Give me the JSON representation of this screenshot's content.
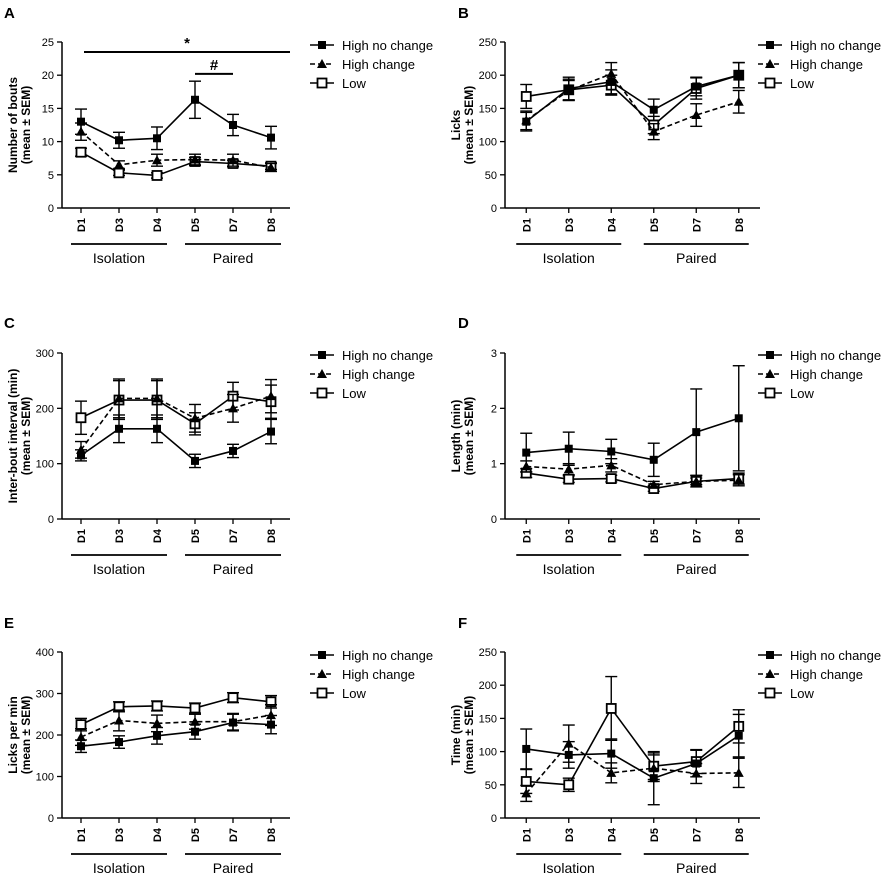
{
  "figure": {
    "x_categories": [
      "D1",
      "D3",
      "D4",
      "D5",
      "D7",
      "D8"
    ],
    "groups": [
      {
        "label": "Isolation",
        "from": 0,
        "to": 2
      },
      {
        "label": "Paired",
        "from": 3,
        "to": 5
      }
    ],
    "legend": [
      "High no change",
      "High change",
      "Low"
    ],
    "ylabel_suffix": "(mean ± SEM)"
  },
  "chart_data": [
    {
      "panel": "A",
      "type": "line",
      "ylabel": "Number of bouts",
      "ylim": [
        0,
        25
      ],
      "yticks": [
        0,
        5,
        10,
        15,
        20,
        25
      ],
      "categories": [
        "D1",
        "D3",
        "D4",
        "D5",
        "D7",
        "D8"
      ],
      "series": [
        {
          "name": "High no change",
          "values": [
            13.0,
            10.2,
            10.5,
            16.3,
            12.5,
            10.6
          ],
          "sem": [
            1.9,
            1.2,
            1.7,
            2.8,
            1.6,
            1.7
          ]
        },
        {
          "name": "High change",
          "values": [
            11.5,
            6.5,
            7.2,
            7.3,
            7.2,
            6.1
          ],
          "sem": [
            1.3,
            0.6,
            0.9,
            0.8,
            0.9,
            0.6
          ]
        },
        {
          "name": "Low",
          "values": [
            8.4,
            5.3,
            4.9,
            7.0,
            6.7,
            6.3
          ],
          "sem": [
            0.6,
            0.4,
            0.4,
            0.6,
            0.5,
            0.5
          ]
        }
      ],
      "annotations": [
        {
          "text": "*",
          "from": 0,
          "to": 5,
          "y": 23.5
        },
        {
          "text": "#",
          "from": 3,
          "to": 4,
          "y": 20.2
        }
      ]
    },
    {
      "panel": "B",
      "type": "line",
      "ylabel": "Licks",
      "ylim": [
        0,
        250
      ],
      "yticks": [
        0,
        50,
        100,
        150,
        200,
        250
      ],
      "categories": [
        "D1",
        "D3",
        "D4",
        "D5",
        "D7",
        "D8"
      ],
      "series": [
        {
          "name": "High no change",
          "values": [
            130,
            180,
            190,
            148,
            183,
            200
          ],
          "sem": [
            14,
            17,
            18,
            16,
            14,
            19
          ]
        },
        {
          "name": "High change",
          "values": [
            132,
            177,
            202,
            115,
            140,
            160
          ],
          "sem": [
            14,
            15,
            17,
            12,
            17,
            17
          ]
        },
        {
          "name": "Low",
          "values": [
            168,
            178,
            185,
            125,
            180,
            200
          ],
          "sem": [
            18,
            16,
            15,
            13,
            16,
            19
          ]
        }
      ]
    },
    {
      "panel": "C",
      "type": "line",
      "ylabel": "Inter-bout interval (min)",
      "ylim": [
        0,
        300
      ],
      "yticks": [
        0,
        100,
        200,
        300
      ],
      "categories": [
        "D1",
        "D3",
        "D4",
        "D5",
        "D7",
        "D8"
      ],
      "series": [
        {
          "name": "High no change",
          "values": [
            115,
            163,
            163,
            105,
            123,
            158
          ],
          "sem": [
            10,
            25,
            25,
            12,
            12,
            22
          ]
        },
        {
          "name": "High change",
          "values": [
            125,
            218,
            218,
            182,
            200,
            222
          ],
          "sem": [
            15,
            35,
            35,
            25,
            25,
            30
          ]
        },
        {
          "name": "Low",
          "values": [
            183,
            215,
            215,
            172,
            222,
            212
          ],
          "sem": [
            30,
            35,
            35,
            20,
            25,
            30
          ]
        }
      ]
    },
    {
      "panel": "D",
      "type": "line",
      "ylabel": "Length (min)",
      "ylim": [
        0,
        3
      ],
      "yticks": [
        0,
        1,
        2,
        3
      ],
      "categories": [
        "D1",
        "D3",
        "D4",
        "D5",
        "D7",
        "D8"
      ],
      "series": [
        {
          "name": "High no change",
          "values": [
            1.2,
            1.27,
            1.22,
            1.07,
            1.57,
            1.82
          ],
          "sem": [
            0.35,
            0.3,
            0.22,
            0.3,
            0.78,
            0.95
          ]
        },
        {
          "name": "High change",
          "values": [
            0.95,
            0.9,
            0.97,
            0.62,
            0.68,
            0.7
          ],
          "sem": [
            0.1,
            0.1,
            0.12,
            0.06,
            0.1,
            0.1
          ]
        },
        {
          "name": "Low",
          "values": [
            0.83,
            0.72,
            0.73,
            0.55,
            0.68,
            0.73
          ],
          "sem": [
            0.08,
            0.06,
            0.06,
            0.05,
            0.06,
            0.1
          ]
        }
      ]
    },
    {
      "panel": "E",
      "type": "line",
      "ylabel": "Licks per min",
      "ylim": [
        0,
        400
      ],
      "yticks": [
        0,
        100,
        200,
        300,
        400
      ],
      "categories": [
        "D1",
        "D3",
        "D4",
        "D5",
        "D7",
        "D8"
      ],
      "series": [
        {
          "name": "High no change",
          "values": [
            173,
            183,
            198,
            208,
            230,
            225
          ],
          "sem": [
            15,
            15,
            20,
            18,
            20,
            22
          ]
        },
        {
          "name": "High change",
          "values": [
            195,
            235,
            228,
            232,
            232,
            248
          ],
          "sem": [
            20,
            25,
            20,
            18,
            20,
            25
          ]
        },
        {
          "name": "Low",
          "values": [
            225,
            268,
            270,
            265,
            290,
            280
          ],
          "sem": [
            15,
            12,
            12,
            12,
            12,
            15
          ]
        }
      ]
    },
    {
      "panel": "F",
      "type": "line",
      "ylabel": "Time (min)",
      "ylim": [
        0,
        250
      ],
      "yticks": [
        0,
        50,
        100,
        150,
        200,
        250
      ],
      "categories": [
        "D1",
        "D3",
        "D4",
        "D5",
        "D7",
        "D8"
      ],
      "series": [
        {
          "name": "High no change",
          "values": [
            104,
            95,
            97,
            60,
            82,
            124
          ],
          "sem": [
            30,
            20,
            22,
            40,
            20,
            32
          ]
        },
        {
          "name": "High change",
          "values": [
            37,
            112,
            68,
            75,
            67,
            68
          ],
          "sem": [
            12,
            28,
            15,
            20,
            15,
            22
          ]
        },
        {
          "name": "Low",
          "values": [
            55,
            50,
            165,
            78,
            85,
            138
          ],
          "sem": [
            18,
            10,
            48,
            20,
            18,
            25
          ]
        }
      ]
    }
  ]
}
